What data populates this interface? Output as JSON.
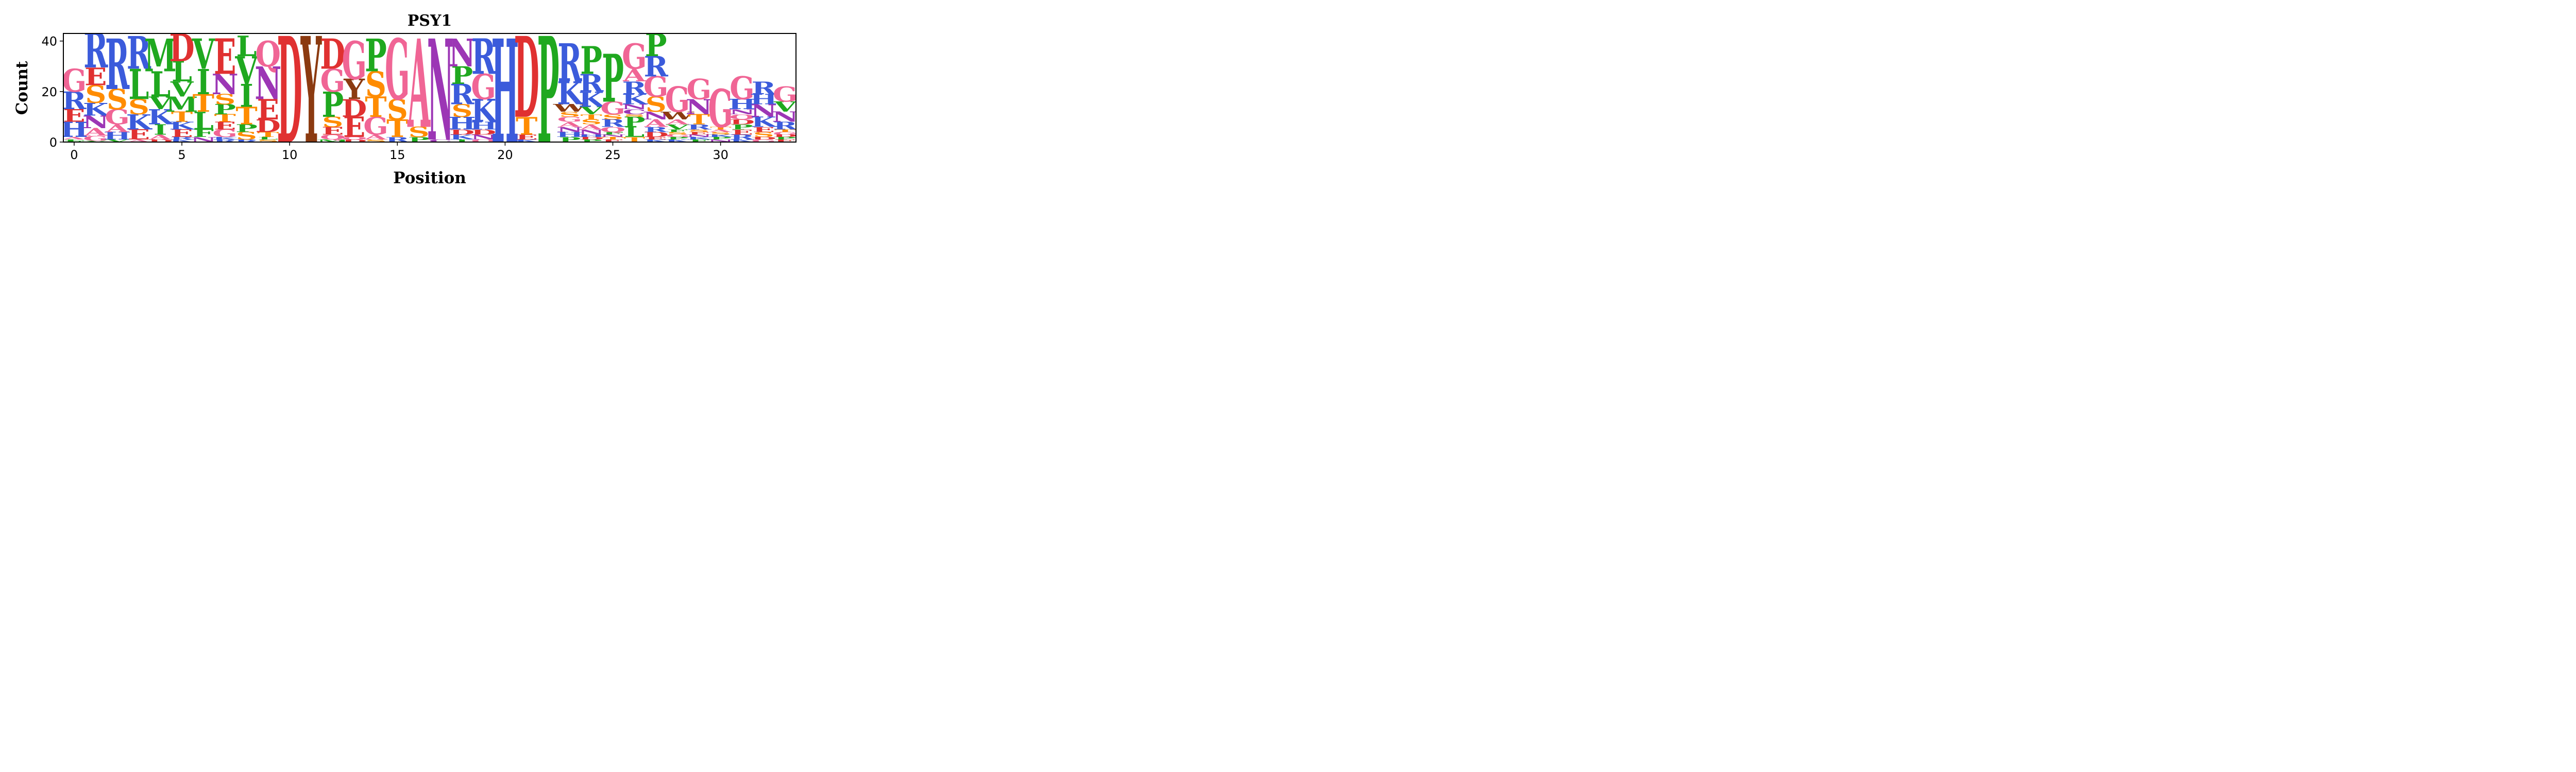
{
  "chart_data": {
    "type": "sequence_logo",
    "title": "PSY1",
    "xlabel": "Position",
    "ylabel": "Count",
    "xlim": [
      -0.5,
      33.5
    ],
    "ylim": [
      0,
      43
    ],
    "x_ticks": [
      0,
      5,
      10,
      15,
      20,
      25,
      30
    ],
    "y_ticks": [
      0,
      20,
      40
    ],
    "colors": {
      "R": "#3b5bdb",
      "K": "#3b5bdb",
      "H": "#3b5bdb",
      "D": "#e03131",
      "E": "#e03131",
      "G": "#f06595",
      "A": "#f06595",
      "Q": "#f06595",
      "L": "#1fa81f",
      "V": "#1fa81f",
      "I": "#1fa81f",
      "M": "#1fa81f",
      "P": "#1fa81f",
      "F": "#1fa81f",
      "S": "#ff8c00",
      "T": "#ff8c00",
      "N": "#9c36b5",
      "C": "#9c36b5",
      "Y": "#8b3a10",
      "W": "#8b3a10"
    },
    "positions": [
      {
        "pos": 0,
        "letters": [
          [
            "F",
            0.5
          ],
          [
            "L",
            0.5
          ],
          [
            "A",
            1
          ],
          [
            "H",
            6
          ],
          [
            "E",
            5
          ],
          [
            "R",
            7
          ],
          [
            "G",
            9
          ]
        ]
      },
      {
        "pos": 1,
        "letters": [
          [
            "V",
            0.5
          ],
          [
            "G",
            2
          ],
          [
            "A",
            3
          ],
          [
            "N",
            5
          ],
          [
            "K",
            5
          ],
          [
            "S",
            7
          ],
          [
            "E",
            7
          ],
          [
            "R",
            14
          ]
        ]
      },
      {
        "pos": 2,
        "letters": [
          [
            "V",
            1
          ],
          [
            "H",
            3
          ],
          [
            "A",
            3
          ],
          [
            "G",
            6
          ],
          [
            "S",
            8
          ],
          [
            "R",
            20
          ]
        ]
      },
      {
        "pos": 3,
        "letters": [
          [
            "A",
            1
          ],
          [
            "E",
            4
          ],
          [
            "K",
            6
          ],
          [
            "S",
            6
          ],
          [
            "L",
            12
          ],
          [
            "R",
            13
          ]
        ]
      },
      {
        "pos": 4,
        "letters": [
          [
            "D",
            1
          ],
          [
            "A",
            2
          ],
          [
            "I",
            4
          ],
          [
            "K",
            6
          ],
          [
            "V",
            5
          ],
          [
            "L",
            10
          ],
          [
            "M",
            13
          ]
        ]
      },
      {
        "pos": 5,
        "letters": [
          [
            "K",
            1
          ],
          [
            "R",
            1
          ],
          [
            "E",
            3
          ],
          [
            "K",
            3
          ],
          [
            "T",
            4
          ],
          [
            "M",
            6
          ],
          [
            "V",
            6
          ],
          [
            "L",
            8
          ],
          [
            "D",
            11
          ]
        ]
      },
      {
        "pos": 6,
        "letters": [
          [
            "N",
            2
          ],
          [
            "F",
            3
          ],
          [
            "L",
            7
          ],
          [
            "T",
            7
          ],
          [
            "I",
            10
          ],
          [
            "V",
            12
          ]
        ]
      },
      {
        "pos": 7,
        "letters": [
          [
            "R",
            1
          ],
          [
            "K",
            1
          ],
          [
            "G",
            3
          ],
          [
            "E",
            3
          ],
          [
            "T",
            3
          ],
          [
            "P",
            4
          ],
          [
            "S",
            4
          ],
          [
            "N",
            8
          ],
          [
            "E",
            14
          ]
        ]
      },
      {
        "pos": 8,
        "letters": [
          [
            "R",
            1
          ],
          [
            "S",
            3
          ],
          [
            "P",
            3
          ],
          [
            "T",
            7
          ],
          [
            "I",
            9
          ],
          [
            "V",
            11
          ],
          [
            "L",
            8
          ]
        ]
      },
      {
        "pos": 9,
        "letters": [
          [
            "S",
            1
          ],
          [
            "L",
            1
          ],
          [
            "T",
            2
          ],
          [
            "D",
            5
          ],
          [
            "E",
            8
          ],
          [
            "N",
            13
          ],
          [
            "Q",
            10
          ]
        ]
      },
      {
        "pos": 10,
        "letters": [
          [
            "D",
            42
          ]
        ]
      },
      {
        "pos": 11,
        "letters": [
          [
            "Y",
            42
          ]
        ]
      },
      {
        "pos": 12,
        "letters": [
          [
            "M",
            1
          ],
          [
            "Q",
            2
          ],
          [
            "E",
            3
          ],
          [
            "S",
            4
          ],
          [
            "P",
            10
          ],
          [
            "G",
            9
          ],
          [
            "D",
            12
          ]
        ]
      },
      {
        "pos": 13,
        "letters": [
          [
            "D",
            1
          ],
          [
            "Q",
            1
          ],
          [
            "E",
            8
          ],
          [
            "D",
            7
          ],
          [
            "Y",
            8
          ],
          [
            "G",
            15
          ]
        ]
      },
      {
        "pos": 14,
        "letters": [
          [
            "S",
            1
          ],
          [
            "A",
            2
          ],
          [
            "G",
            7
          ],
          [
            "T",
            8
          ],
          [
            "S",
            10
          ],
          [
            "P",
            13
          ]
        ]
      },
      {
        "pos": 15,
        "letters": [
          [
            "R",
            2
          ],
          [
            "T",
            7
          ],
          [
            "S",
            8
          ],
          [
            "G",
            24
          ]
        ]
      },
      {
        "pos": 16,
        "letters": [
          [
            "P",
            2
          ],
          [
            "S",
            4
          ],
          [
            "A",
            35
          ]
        ]
      },
      {
        "pos": 17,
        "letters": [
          [
            "C",
            1
          ],
          [
            "N",
            40
          ]
        ]
      },
      {
        "pos": 18,
        "letters": [
          [
            "I",
            1
          ],
          [
            "K",
            2
          ],
          [
            "D",
            2
          ],
          [
            "H",
            5
          ],
          [
            "S",
            5
          ],
          [
            "R",
            8
          ],
          [
            "P",
            7
          ],
          [
            "N",
            11
          ]
        ]
      },
      {
        "pos": 19,
        "letters": [
          [
            "Q",
            1
          ],
          [
            "N",
            2
          ],
          [
            "D",
            2
          ],
          [
            "H",
            3
          ],
          [
            "K",
            9
          ],
          [
            "G",
            10
          ],
          [
            "R",
            14
          ]
        ]
      },
      {
        "pos": 20,
        "letters": [
          [
            "H",
            41
          ]
        ]
      },
      {
        "pos": 21,
        "letters": [
          [
            "K",
            1
          ],
          [
            "E",
            2
          ],
          [
            "T",
            7
          ],
          [
            "D",
            32
          ]
        ]
      },
      {
        "pos": 22,
        "letters": [
          [
            "P",
            42
          ]
        ]
      },
      {
        "pos": 23,
        "letters": [
          [
            "P",
            2
          ],
          [
            "H",
            2
          ],
          [
            "N",
            2
          ],
          [
            "A",
            2
          ],
          [
            "G",
            2
          ],
          [
            "S",
            2
          ],
          [
            "W",
            3
          ],
          [
            "K",
            9
          ],
          [
            "R",
            15
          ]
        ]
      },
      {
        "pos": 24,
        "letters": [
          [
            "P",
            1
          ],
          [
            "D",
            1
          ],
          [
            "H",
            1
          ],
          [
            "N",
            2
          ],
          [
            "A",
            2
          ],
          [
            "S",
            2
          ],
          [
            "T",
            2
          ],
          [
            "V",
            3
          ],
          [
            "K",
            6
          ],
          [
            "R",
            7
          ],
          [
            "P",
            11
          ]
        ]
      },
      {
        "pos": 25,
        "letters": [
          [
            "E",
            1
          ],
          [
            "T",
            1
          ],
          [
            "N",
            1
          ],
          [
            "F",
            1
          ],
          [
            "Q",
            2
          ],
          [
            "R",
            3
          ],
          [
            "S",
            2
          ],
          [
            "G",
            5
          ],
          [
            "P",
            19
          ]
        ]
      },
      {
        "pos": 26,
        "letters": [
          [
            "T",
            2
          ],
          [
            "L",
            4
          ],
          [
            "P",
            4
          ],
          [
            "S",
            1
          ],
          [
            "C",
            2
          ],
          [
            "N",
            2
          ],
          [
            "K",
            4
          ],
          [
            "R",
            5
          ],
          [
            "A",
            5
          ],
          [
            "G",
            10
          ]
        ]
      },
      {
        "pos": 27,
        "letters": [
          [
            "K",
            1
          ],
          [
            "E",
            1
          ],
          [
            "D",
            2
          ],
          [
            "R",
            2
          ],
          [
            "A",
            3
          ],
          [
            "N",
            3
          ],
          [
            "S",
            6
          ],
          [
            "G",
            8
          ],
          [
            "R",
            8
          ],
          [
            "P",
            9
          ]
        ]
      },
      {
        "pos": 28,
        "letters": [
          [
            "K",
            1
          ],
          [
            "P",
            1
          ],
          [
            "G",
            1
          ],
          [
            "S",
            1
          ],
          [
            "F",
            1
          ],
          [
            "V",
            2
          ],
          [
            "A",
            2
          ],
          [
            "W",
            3
          ],
          [
            "G",
            10
          ]
        ]
      },
      {
        "pos": 29,
        "letters": [
          [
            "F",
            1
          ],
          [
            "K",
            1
          ],
          [
            "N",
            1
          ],
          [
            "E",
            1
          ],
          [
            "S",
            1
          ],
          [
            "R",
            2
          ],
          [
            "T",
            4
          ],
          [
            "N",
            6
          ],
          [
            "G",
            8
          ]
        ]
      },
      {
        "pos": 30,
        "letters": [
          [
            "N",
            1
          ],
          [
            "P",
            1
          ],
          [
            "K",
            1
          ],
          [
            "S",
            1
          ],
          [
            "A",
            1
          ],
          [
            "T",
            1
          ],
          [
            "G",
            15
          ]
        ]
      },
      {
        "pos": 31,
        "letters": [
          [
            "K",
            1
          ],
          [
            "R",
            2
          ],
          [
            "E",
            2
          ],
          [
            "P",
            2
          ],
          [
            "D",
            2
          ],
          [
            "Q",
            2
          ],
          [
            "N",
            2
          ],
          [
            "H",
            4
          ],
          [
            "G",
            9
          ]
        ]
      },
      {
        "pos": 32,
        "letters": [
          [
            "G",
            1
          ],
          [
            "D",
            1
          ],
          [
            "S",
            2
          ],
          [
            "E",
            2
          ],
          [
            "K",
            4
          ],
          [
            "N",
            5
          ],
          [
            "H",
            4
          ],
          [
            "R",
            5
          ]
        ]
      },
      {
        "pos": 33,
        "letters": [
          [
            "E",
            1
          ],
          [
            "P",
            1
          ],
          [
            "D",
            1
          ],
          [
            "G",
            1
          ],
          [
            "T",
            1
          ],
          [
            "R",
            3
          ],
          [
            "N",
            4
          ],
          [
            "V",
            4
          ],
          [
            "G",
            6
          ]
        ]
      }
    ]
  }
}
